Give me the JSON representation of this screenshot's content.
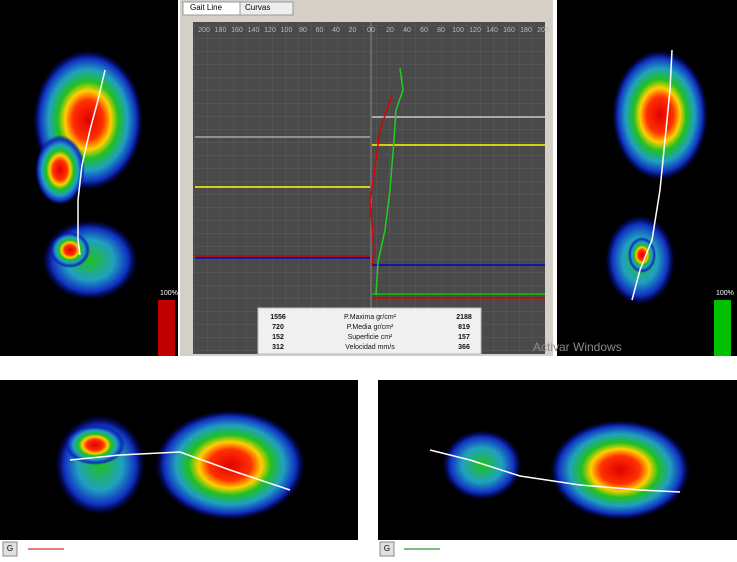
{
  "tabs": [
    "Gait Line",
    "Curvas"
  ],
  "left_axis": [
    "200",
    "180",
    "160",
    "140",
    "120",
    "100",
    "80",
    "60",
    "40",
    "20",
    "0"
  ],
  "right_axis": [
    "0",
    "20",
    "40",
    "60",
    "80",
    "100",
    "120",
    "140",
    "160",
    "180",
    "200"
  ],
  "scale_left": "100%",
  "scale_right": "100%",
  "stats": [
    [
      "1556",
      "P.Maxima gr/cm²",
      "2188"
    ],
    [
      "720",
      "P.Media gr/cm²",
      "819"
    ],
    [
      "152",
      "Superficie cm²",
      "157"
    ],
    [
      "312",
      "Velocidad mm/s",
      "366"
    ]
  ],
  "watermark": "Activar Windows",
  "buttons": [
    "G",
    "G"
  ]
}
